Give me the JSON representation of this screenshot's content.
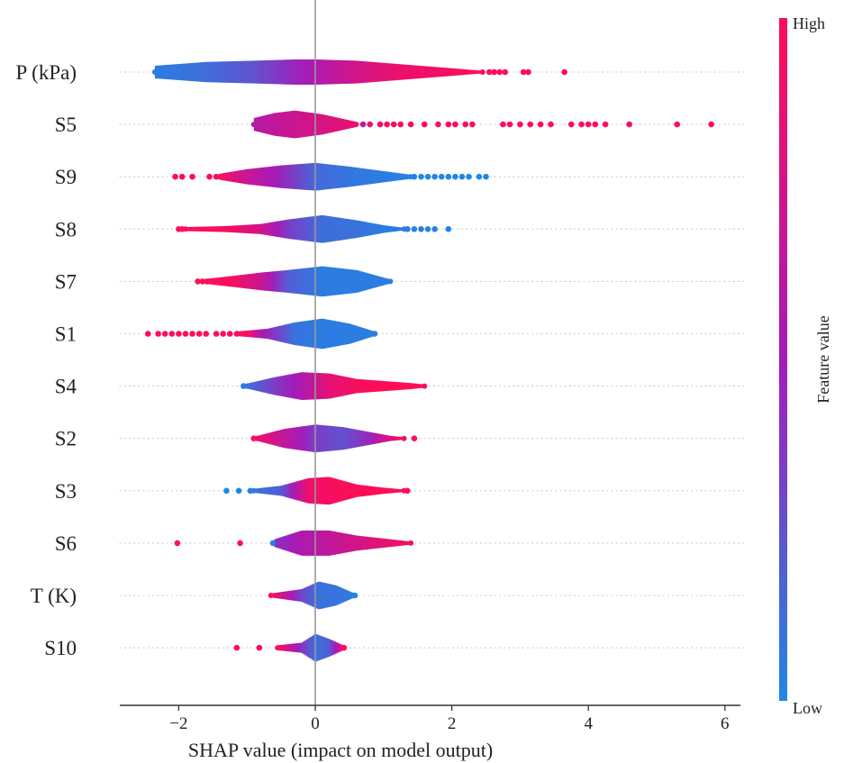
{
  "chart_data": {
    "type": "beeswarm",
    "title": "",
    "xlabel": "SHAP value (impact on model output)",
    "xlim": [
      -2.9,
      6.2
    ],
    "xticks": [
      {
        "value": -2,
        "label": "−2"
      },
      {
        "value": 0,
        "label": "0"
      },
      {
        "value": 2,
        "label": "2"
      },
      {
        "value": 4,
        "label": "4"
      },
      {
        "value": 6,
        "label": "6"
      }
    ],
    "colorbar": {
      "label": "Feature value",
      "high_label": "High",
      "low_label": "Low",
      "high_color": "#ff0d57",
      "low_color": "#1e88e5"
    },
    "zero_line": true,
    "features": [
      {
        "name": "P (kPa)",
        "profile": [
          [
            -2.35,
            0.25,
            0.05
          ],
          [
            -1.6,
            0.4,
            0.12
          ],
          [
            -0.9,
            0.45,
            0.25
          ],
          [
            -0.3,
            0.5,
            0.45
          ],
          [
            0.0,
            0.5,
            0.55
          ],
          [
            0.6,
            0.45,
            0.75
          ],
          [
            1.2,
            0.32,
            0.88
          ],
          [
            2.0,
            0.15,
            0.95
          ],
          [
            2.45,
            0.05,
            1.0
          ]
        ],
        "points": [
          [
            2.55,
            0.98
          ],
          [
            2.62,
            0.98
          ],
          [
            2.7,
            0.98
          ],
          [
            2.78,
            0.98
          ],
          [
            3.05,
            1.0
          ],
          [
            3.12,
            1.0
          ],
          [
            3.65,
            1.0
          ]
        ]
      },
      {
        "name": "S5",
        "profile": [
          [
            -0.9,
            0.25,
            0.6
          ],
          [
            -0.6,
            0.45,
            0.65
          ],
          [
            -0.3,
            0.55,
            0.7
          ],
          [
            0.1,
            0.4,
            0.78
          ],
          [
            0.4,
            0.22,
            0.82
          ],
          [
            0.6,
            0.1,
            0.9
          ]
        ],
        "points": [
          [
            0.7,
            0.6
          ],
          [
            0.8,
            0.85
          ],
          [
            0.95,
            0.9
          ],
          [
            1.05,
            0.95
          ],
          [
            1.15,
            0.9
          ],
          [
            1.25,
            1.0
          ],
          [
            1.4,
            0.95
          ],
          [
            1.6,
            1.0
          ],
          [
            1.8,
            0.95
          ],
          [
            1.95,
            1.0
          ],
          [
            2.05,
            1.0
          ],
          [
            2.2,
            0.95
          ],
          [
            2.3,
            1.0
          ],
          [
            2.75,
            1.0
          ],
          [
            2.85,
            1.0
          ],
          [
            3.0,
            1.0
          ],
          [
            3.15,
            1.0
          ],
          [
            3.3,
            1.0
          ],
          [
            3.45,
            1.0
          ],
          [
            3.75,
            1.0
          ],
          [
            3.9,
            1.0
          ],
          [
            4.0,
            1.0
          ],
          [
            4.1,
            1.0
          ],
          [
            4.25,
            1.0
          ],
          [
            4.6,
            1.0
          ],
          [
            5.3,
            1.0
          ],
          [
            5.8,
            1.0
          ]
        ]
      },
      {
        "name": "S9",
        "profile": [
          [
            -1.4,
            0.12,
            0.9
          ],
          [
            -1.0,
            0.3,
            0.7
          ],
          [
            -0.5,
            0.45,
            0.45
          ],
          [
            0.0,
            0.55,
            0.15
          ],
          [
            0.5,
            0.4,
            0.08
          ],
          [
            1.0,
            0.22,
            0.05
          ],
          [
            1.4,
            0.08,
            0.03
          ]
        ],
        "points": [
          [
            -2.05,
            1.0
          ],
          [
            -1.95,
            1.0
          ],
          [
            -1.8,
            1.0
          ],
          [
            -1.55,
            1.0
          ],
          [
            -1.45,
            0.95
          ],
          [
            -1.35,
            1.0
          ],
          [
            1.45,
            0.05
          ],
          [
            1.55,
            0.0
          ],
          [
            1.65,
            0.0
          ],
          [
            1.75,
            0.05
          ],
          [
            1.85,
            0.0
          ],
          [
            1.95,
            0.0
          ],
          [
            2.05,
            0.0
          ],
          [
            2.15,
            0.0
          ],
          [
            2.25,
            0.0
          ],
          [
            2.4,
            0.0
          ],
          [
            2.5,
            0.0
          ]
        ]
      },
      {
        "name": "S8",
        "profile": [
          [
            -1.9,
            0.08,
            0.98
          ],
          [
            -1.3,
            0.12,
            0.95
          ],
          [
            -0.8,
            0.2,
            0.75
          ],
          [
            -0.4,
            0.38,
            0.35
          ],
          [
            0.1,
            0.55,
            0.12
          ],
          [
            0.6,
            0.35,
            0.1
          ],
          [
            1.0,
            0.15,
            0.05
          ],
          [
            1.3,
            0.05,
            0.05
          ]
        ],
        "points": [
          [
            -2.0,
            1.0
          ],
          [
            -1.95,
            1.0
          ],
          [
            1.35,
            0.05
          ],
          [
            1.45,
            0.0
          ],
          [
            1.55,
            0.05
          ],
          [
            1.65,
            0.0
          ],
          [
            1.75,
            0.05
          ],
          [
            1.95,
            0.0
          ]
        ]
      },
      {
        "name": "S7",
        "profile": [
          [
            -1.6,
            0.1,
            0.98
          ],
          [
            -1.2,
            0.22,
            0.95
          ],
          [
            -0.8,
            0.35,
            0.7
          ],
          [
            -0.4,
            0.45,
            0.2
          ],
          [
            0.1,
            0.6,
            0.05
          ],
          [
            0.6,
            0.45,
            0.05
          ],
          [
            1.0,
            0.15,
            0.05
          ],
          [
            1.1,
            0.08,
            0.05
          ]
        ],
        "points": [
          [
            -1.72,
            1.0
          ],
          [
            -1.65,
            1.0
          ],
          [
            -1.58,
            1.0
          ]
        ]
      },
      {
        "name": "S1",
        "profile": [
          [
            -1.1,
            0.1,
            0.95
          ],
          [
            -0.7,
            0.2,
            0.45
          ],
          [
            -0.3,
            0.45,
            0.1
          ],
          [
            0.1,
            0.6,
            0.05
          ],
          [
            0.5,
            0.4,
            0.05
          ],
          [
            0.85,
            0.1,
            0.05
          ]
        ],
        "points": [
          [
            -2.45,
            1.0
          ],
          [
            -2.3,
            1.0
          ],
          [
            -2.2,
            1.0
          ],
          [
            -2.1,
            1.0
          ],
          [
            -2.0,
            1.0
          ],
          [
            -1.9,
            1.0
          ],
          [
            -1.8,
            1.0
          ],
          [
            -1.7,
            1.0
          ],
          [
            -1.6,
            1.0
          ],
          [
            -1.45,
            1.0
          ],
          [
            -1.35,
            1.0
          ],
          [
            -1.25,
            1.0
          ],
          [
            -1.15,
            1.0
          ],
          [
            -1.05,
            1.0
          ],
          [
            -0.95,
            0.95
          ],
          [
            0.87,
            0.05
          ]
        ]
      },
      {
        "name": "S4",
        "profile": [
          [
            -1.0,
            0.1,
            0.1
          ],
          [
            -0.6,
            0.35,
            0.35
          ],
          [
            -0.2,
            0.55,
            0.55
          ],
          [
            0.2,
            0.5,
            0.85
          ],
          [
            0.6,
            0.28,
            0.95
          ],
          [
            1.0,
            0.2,
            1.0
          ],
          [
            1.4,
            0.12,
            1.0
          ],
          [
            1.6,
            0.06,
            1.0
          ]
        ],
        "points": [
          [
            -1.05,
            0.05
          ]
        ]
      },
      {
        "name": "S2",
        "profile": [
          [
            -0.85,
            0.1,
            0.9
          ],
          [
            -0.45,
            0.38,
            0.65
          ],
          [
            0.0,
            0.55,
            0.35
          ],
          [
            0.4,
            0.45,
            0.25
          ],
          [
            0.8,
            0.25,
            0.45
          ],
          [
            1.1,
            0.1,
            0.85
          ],
          [
            1.3,
            0.05,
            0.95
          ]
        ],
        "points": [
          [
            -0.9,
            1.0
          ],
          [
            1.45,
            1.0
          ]
        ]
      },
      {
        "name": "S3",
        "profile": [
          [
            -0.9,
            0.08,
            0.1
          ],
          [
            -0.5,
            0.2,
            0.2
          ],
          [
            -0.1,
            0.5,
            0.9
          ],
          [
            0.2,
            0.55,
            0.95
          ],
          [
            0.6,
            0.25,
            1.0
          ],
          [
            1.0,
            0.12,
            1.0
          ],
          [
            1.3,
            0.05,
            1.0
          ]
        ],
        "points": [
          [
            -1.3,
            0.0
          ],
          [
            -1.12,
            0.0
          ],
          [
            -0.95,
            0.05
          ],
          [
            1.35,
            1.0
          ]
        ]
      },
      {
        "name": "S6",
        "profile": [
          [
            -0.6,
            0.15,
            0.4
          ],
          [
            -0.2,
            0.5,
            0.55
          ],
          [
            0.2,
            0.5,
            0.65
          ],
          [
            0.6,
            0.3,
            0.75
          ],
          [
            1.0,
            0.18,
            0.85
          ],
          [
            1.4,
            0.06,
            0.95
          ]
        ],
        "points": [
          [
            -2.02,
            1.0
          ],
          [
            -1.1,
            1.0
          ],
          [
            -0.62,
            0.05
          ]
        ]
      },
      {
        "name": "T (K)",
        "profile": [
          [
            -0.65,
            0.08,
            0.98
          ],
          [
            -0.2,
            0.25,
            0.3
          ],
          [
            0.05,
            0.55,
            0.1
          ],
          [
            0.3,
            0.4,
            0.1
          ],
          [
            0.55,
            0.1,
            0.05
          ]
        ],
        "points": [
          [
            0.58,
            0.0
          ]
        ]
      },
      {
        "name": "S10",
        "profile": [
          [
            -0.55,
            0.1,
            0.98
          ],
          [
            -0.2,
            0.2,
            0.4
          ],
          [
            0.0,
            0.55,
            0.1
          ],
          [
            0.2,
            0.35,
            0.2
          ],
          [
            0.42,
            0.08,
            0.9
          ]
        ],
        "points": [
          [
            -1.15,
            1.0
          ],
          [
            -0.82,
            1.0
          ],
          [
            0.42,
            1.0
          ]
        ]
      }
    ]
  }
}
